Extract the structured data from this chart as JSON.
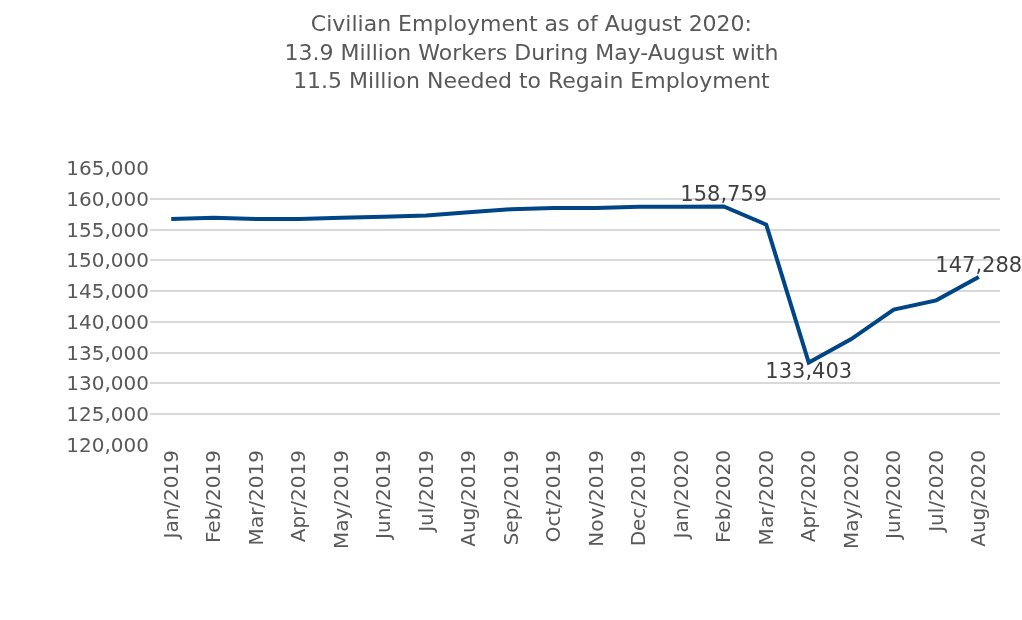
{
  "chart_data": {
    "type": "line",
    "title": "Civilian Employment as of August 2020:\n13.9 Million Workers During May-August with\n11.5 Million Needed to Regain Employment",
    "categories": [
      "Jan/2019",
      "Feb/2019",
      "Mar/2019",
      "Apr/2019",
      "May/2019",
      "Jun/2019",
      "Jul/2019",
      "Aug/2019",
      "Sep/2019",
      "Oct/2019",
      "Nov/2019",
      "Dec/2019",
      "Jan/2020",
      "Feb/2020",
      "Mar/2020",
      "Apr/2020",
      "May/2020",
      "Jun/2020",
      "Jul/2020",
      "Aug/2020"
    ],
    "series": [
      {
        "color": "#004586",
        "values": [
          156700,
          156900,
          156700,
          156700,
          156900,
          157100,
          157300,
          157800,
          158300,
          158500,
          158500,
          158700,
          158700,
          158759,
          155800,
          133403,
          137200,
          142000,
          143500,
          147288
        ],
        "value_labels": [
          null,
          null,
          null,
          null,
          null,
          null,
          null,
          null,
          null,
          null,
          null,
          null,
          null,
          "158,759",
          null,
          "133,403",
          null,
          null,
          null,
          "147,288"
        ]
      }
    ],
    "ylim": [
      120000,
      165000
    ],
    "yticks": [
      {
        "value": 120000,
        "label": "120,000"
      },
      {
        "value": 125000,
        "label": "125,000"
      },
      {
        "value": 130000,
        "label": "130,000"
      },
      {
        "value": 135000,
        "label": "135,000"
      },
      {
        "value": 140000,
        "label": "140,000"
      },
      {
        "value": 145000,
        "label": "145,000"
      },
      {
        "value": 150000,
        "label": "150,000"
      },
      {
        "value": 155000,
        "label": "155,000"
      },
      {
        "value": 160000,
        "label": "160,000"
      },
      {
        "value": 165000,
        "label": "165,000"
      }
    ],
    "grid": "y",
    "legend": false,
    "marker": "none",
    "line_style": "solid"
  }
}
